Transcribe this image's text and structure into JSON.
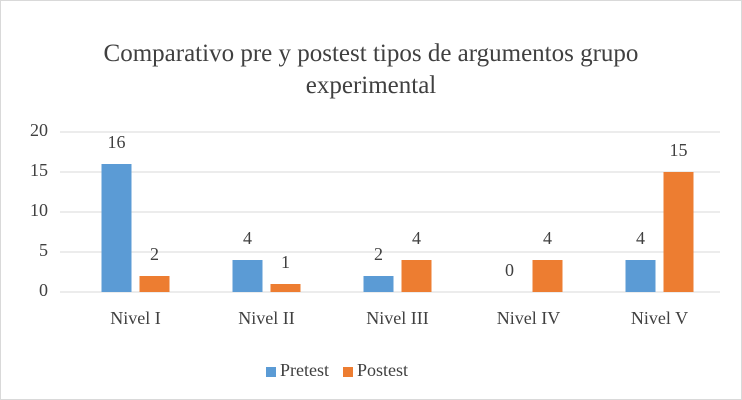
{
  "chart_data": {
    "type": "bar",
    "title": "Comparativo pre y postest tipos de argumentos grupo experimental",
    "categories": [
      "Nivel I",
      "Nivel II",
      "Nivel III",
      "Nivel IV",
      "Nivel V"
    ],
    "series": [
      {
        "name": "Pretest",
        "color": "#5b9bd5",
        "values": [
          16,
          4,
          2,
          0,
          4
        ]
      },
      {
        "name": "Postest",
        "color": "#ed7d31",
        "values": [
          2,
          1,
          4,
          4,
          15
        ]
      }
    ],
    "ylim": [
      0,
      20
    ],
    "yticks": [
      0,
      5,
      10,
      15,
      20
    ],
    "grid": true,
    "legend": "bottom"
  }
}
